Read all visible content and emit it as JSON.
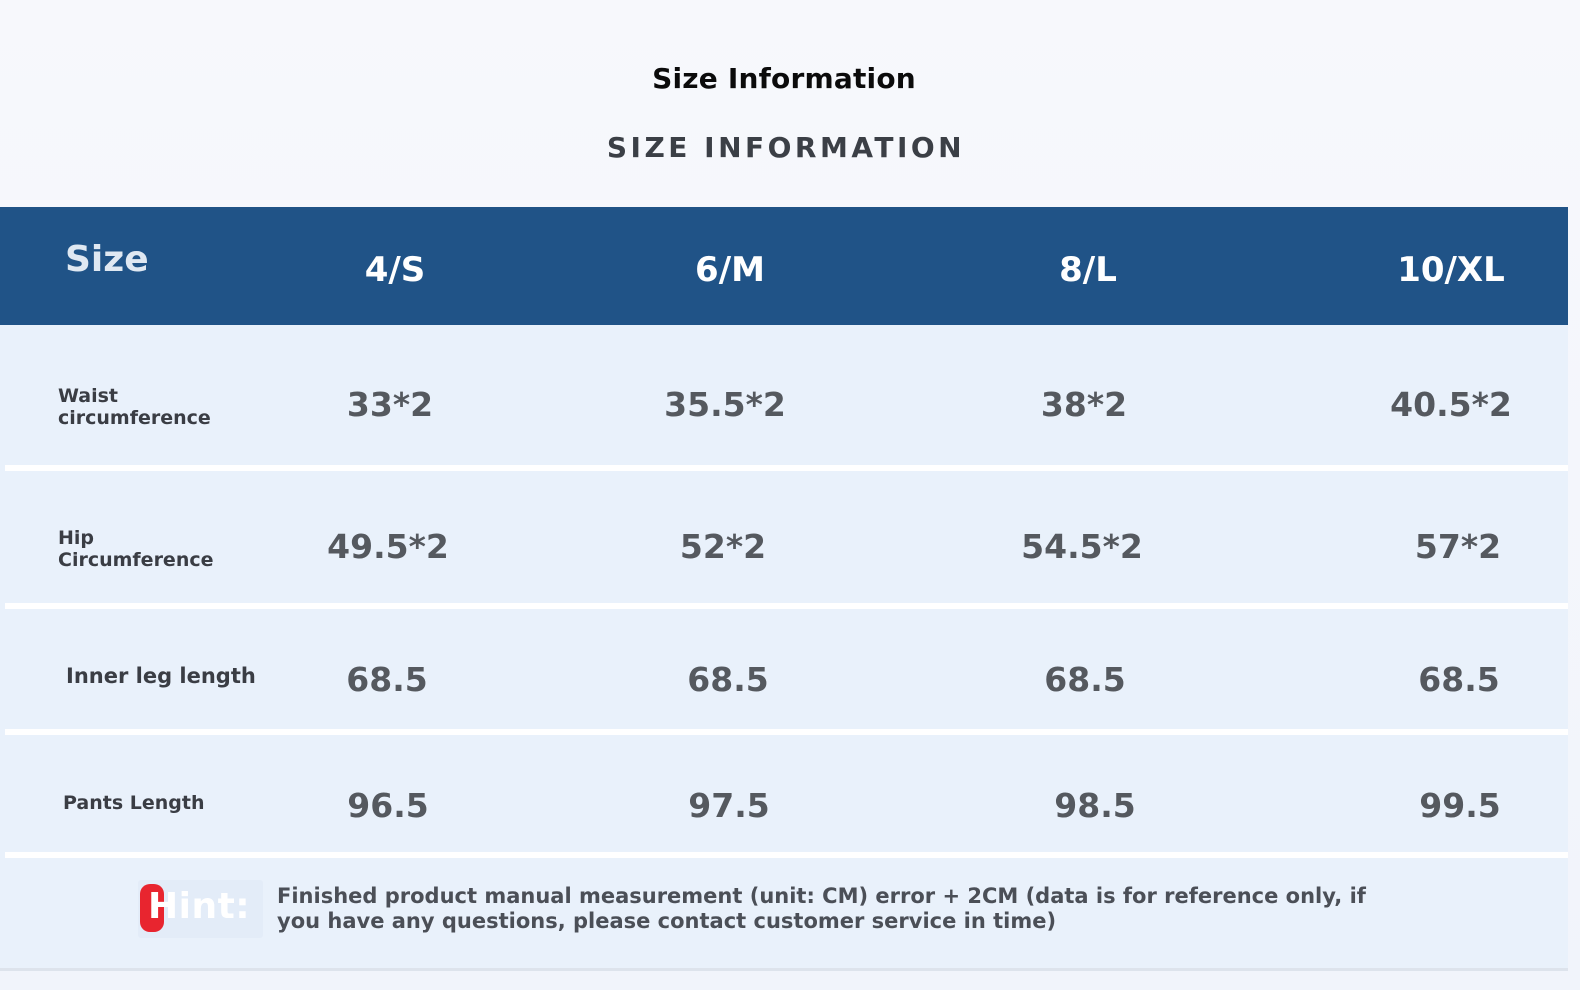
{
  "title": "Size Information",
  "subtitle": "SIZE INFORMATION",
  "table": {
    "header_label": "Size",
    "sizes": [
      "4/S",
      "6/M",
      "8/L",
      "10/XL"
    ],
    "rows": [
      {
        "label_line1": "Waist",
        "label_line2": "circumference",
        "values": [
          "33*2",
          "35.5*2",
          "38*2",
          "40.5*2"
        ]
      },
      {
        "label_line1": "Hip",
        "label_line2": "Circumference",
        "values": [
          "49.5*2",
          "52*2",
          "54.5*2",
          "57*2"
        ]
      },
      {
        "label": "Inner leg length",
        "values": [
          "68.5",
          "68.5",
          "68.5",
          "68.5"
        ]
      },
      {
        "label": "Pants Length",
        "values": [
          "96.5",
          "97.5",
          "98.5",
          "99.5"
        ]
      }
    ]
  },
  "hint": {
    "label": "Hint:",
    "text": "Finished product manual measurement (unit: CM) error + 2CM (data is for reference only, if you have any questions, please contact customer service in time)",
    "accent_color": "#e8252f"
  },
  "colors": {
    "header_bg": "#205387",
    "table_bg": "#e9f1fb"
  }
}
